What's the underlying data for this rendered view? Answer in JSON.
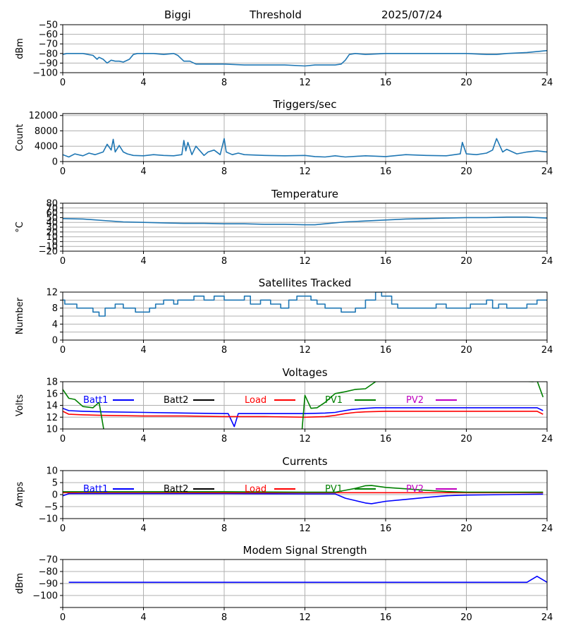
{
  "header": {
    "station": "Biggi",
    "mode": "Threshold",
    "date": "2025/07/24"
  },
  "chart_data": [
    {
      "type": "line",
      "title": "",
      "xlabel": "",
      "ylabel": "dBm",
      "xlim": [
        0,
        24
      ],
      "ylim": [
        -100,
        -50
      ],
      "xticks": [
        "0",
        "4",
        "8",
        "12",
        "16",
        "20",
        "24"
      ],
      "yticks": [
        "−50",
        "−60",
        "−70",
        "−80",
        "−90",
        "−100"
      ],
      "ytick_values": [
        -50,
        -60,
        -70,
        -80,
        -90,
        -100
      ],
      "grid": true,
      "series": [
        {
          "color": "#1f77b4",
          "x": [
            0,
            0.2,
            0.5,
            1,
            1.5,
            1.7,
            1.8,
            2,
            2.2,
            2.4,
            2.6,
            2.8,
            3,
            3.3,
            3.5,
            3.7,
            4,
            4.5,
            5,
            5.5,
            5.7,
            6,
            6.3,
            6.6,
            7,
            8,
            9,
            10,
            11,
            12,
            12.5,
            13,
            13.5,
            13.8,
            14,
            14.2,
            14.5,
            15,
            16,
            17,
            18,
            19,
            20,
            21,
            21.5,
            22,
            23,
            24
          ],
          "values": [
            -81,
            -80,
            -80,
            -80,
            -82,
            -86,
            -84,
            -86,
            -90,
            -87,
            -88,
            -88,
            -89,
            -86,
            -81,
            -80,
            -80,
            -80,
            -81,
            -80,
            -82,
            -88,
            -88,
            -91,
            -91,
            -91,
            -92,
            -92,
            -92,
            -93,
            -92,
            -92,
            -92,
            -91,
            -87,
            -81,
            -80,
            -81,
            -80,
            -80,
            -80,
            -80,
            -80,
            -81,
            -81,
            -80,
            -79,
            -77
          ]
        }
      ]
    },
    {
      "type": "line",
      "title": "Triggers/sec",
      "xlabel": "",
      "ylabel": "Count",
      "xlim": [
        0,
        24
      ],
      "ylim": [
        0,
        12500
      ],
      "xticks": [
        "0",
        "4",
        "8",
        "12",
        "16",
        "20",
        "24"
      ],
      "yticks": [
        "0",
        "4000",
        "8000",
        "12000"
      ],
      "ytick_values": [
        0,
        4000,
        8000,
        12000
      ],
      "grid": true,
      "series": [
        {
          "color": "#1f77b4",
          "x": [
            0,
            0.3,
            0.6,
            1,
            1.3,
            1.6,
            2,
            2.2,
            2.4,
            2.5,
            2.6,
            2.8,
            3,
            3.2,
            3.5,
            4,
            4.5,
            5,
            5.5,
            5.9,
            6,
            6.1,
            6.2,
            6.4,
            6.6,
            7,
            7.2,
            7.5,
            7.8,
            8,
            8.1,
            8.4,
            8.7,
            9,
            10,
            11,
            12,
            12.5,
            13,
            13.5,
            14,
            15,
            16,
            17,
            18,
            19,
            19.7,
            19.8,
            20,
            20.5,
            21,
            21.3,
            21.5,
            21.8,
            22,
            22.5,
            23,
            23.5,
            24
          ],
          "values": [
            1800,
            1200,
            2000,
            1500,
            2200,
            1800,
            2500,
            4500,
            3000,
            5800,
            2500,
            4200,
            2500,
            2000,
            1600,
            1500,
            1800,
            1600,
            1500,
            1800,
            5500,
            2800,
            5000,
            1800,
            4000,
            1600,
            2500,
            3000,
            1800,
            6000,
            2500,
            1800,
            2200,
            1800,
            1600,
            1500,
            1600,
            1300,
            1200,
            1500,
            1200,
            1500,
            1300,
            1800,
            1600,
            1500,
            2000,
            5000,
            2000,
            1800,
            2200,
            3000,
            6000,
            2500,
            3200,
            2000,
            2500,
            2800,
            2500
          ]
        }
      ]
    },
    {
      "type": "line",
      "title": "Temperature",
      "xlabel": "",
      "ylabel": "°C",
      "xlim": [
        0,
        24
      ],
      "ylim": [
        -20,
        80
      ],
      "xticks": [
        "0",
        "4",
        "8",
        "12",
        "16",
        "20",
        "24"
      ],
      "yticks": [
        "−20",
        "0",
        "20",
        "40",
        "60",
        "80"
      ],
      "ytick_values": [
        -20,
        -10,
        0,
        10,
        20,
        30,
        40,
        50,
        60,
        70,
        80
      ],
      "yticklabels_full": [
        "−20",
        "−10",
        "0",
        "10",
        "20",
        "30",
        "40",
        "50",
        "60",
        "70",
        "80"
      ],
      "grid": true,
      "series": [
        {
          "color": "#1f77b4",
          "x": [
            0,
            1,
            2,
            3,
            4,
            5,
            6,
            7,
            8,
            9,
            10,
            11,
            12,
            12.5,
            13,
            14,
            15,
            16,
            17,
            18,
            19,
            20,
            21,
            22,
            23,
            23.5,
            24
          ],
          "values": [
            48,
            47,
            44,
            41,
            40,
            39,
            38,
            38,
            37,
            37,
            36,
            36,
            35,
            35,
            37,
            41,
            43,
            45,
            47,
            48,
            49,
            50,
            50,
            51,
            51,
            50,
            49
          ]
        }
      ]
    },
    {
      "type": "line",
      "title": "Satellites Tracked",
      "xlabel": "",
      "ylabel": "Number",
      "xlim": [
        0,
        24
      ],
      "ylim": [
        0,
        12
      ],
      "xticks": [
        "0",
        "4",
        "8",
        "12",
        "16",
        "20",
        "24"
      ],
      "yticks": [
        "0",
        "4",
        "8",
        "12"
      ],
      "ytick_values": [
        0,
        2,
        4,
        6,
        8,
        10,
        12
      ],
      "yticklabels_full": [
        "0",
        "",
        "4",
        "",
        "8",
        "",
        "12"
      ],
      "grid": true,
      "step": true,
      "series": [
        {
          "color": "#1f77b4",
          "x": [
            0,
            0.1,
            0.3,
            0.7,
            1,
            1.5,
            1.8,
            2.1,
            2.3,
            2.6,
            3,
            3.5,
            3.6,
            4,
            4.3,
            4.6,
            5,
            5.5,
            5.7,
            6,
            6.5,
            7,
            7.5,
            8,
            8.5,
            9,
            9.3,
            9.8,
            10.3,
            10.8,
            11.2,
            11.6,
            11.9,
            12.3,
            12.6,
            13,
            13.8,
            14.5,
            15,
            15.5,
            15.8,
            16.3,
            16.6,
            17,
            17.5,
            18,
            18.5,
            19,
            19.5,
            20.2,
            20.5,
            21,
            21.3,
            21.6,
            22,
            22.5,
            23,
            23.5,
            24
          ],
          "values": [
            10,
            9,
            9,
            8,
            8,
            7,
            6,
            8,
            8,
            9,
            8,
            8,
            7,
            7,
            8,
            9,
            10,
            9,
            10,
            10,
            11,
            10,
            11,
            10,
            10,
            11,
            9,
            10,
            9,
            8,
            10,
            11,
            11,
            10,
            9,
            8,
            7,
            8,
            10,
            12,
            11,
            9,
            8,
            8,
            8,
            8,
            9,
            8,
            8,
            9,
            9,
            10,
            8,
            9,
            8,
            8,
            9,
            10,
            10
          ]
        }
      ]
    },
    {
      "type": "line",
      "title": "Voltages",
      "xlabel": "",
      "ylabel": "Volts",
      "xlim": [
        0,
        24
      ],
      "ylim": [
        10,
        18
      ],
      "xticks": [
        "0",
        "4",
        "8",
        "12",
        "16",
        "20",
        "24"
      ],
      "yticks": [
        "10",
        "12",
        "14",
        "16",
        "18"
      ],
      "ytick_values": [
        10,
        12,
        14,
        16,
        18
      ],
      "grid": true,
      "legend": "inside-top, horizontal",
      "series": [
        {
          "name": "Batt1",
          "color": "#0000ff",
          "x": [
            0,
            0.3,
            1,
            2,
            4,
            6,
            8,
            8.2,
            8.5,
            8.7,
            9,
            10,
            11,
            12,
            13,
            13.5,
            13.8,
            14.3,
            15,
            15.5,
            16,
            18,
            20,
            22,
            23.5,
            23.8
          ],
          "values": [
            13.5,
            13.1,
            13.0,
            12.9,
            12.8,
            12.7,
            12.6,
            12.6,
            10.4,
            12.6,
            12.6,
            12.6,
            12.6,
            12.6,
            12.7,
            12.8,
            13.0,
            13.3,
            13.5,
            13.6,
            13.6,
            13.6,
            13.6,
            13.6,
            13.6,
            13.1
          ]
        },
        {
          "name": "Batt2",
          "color": "#000000",
          "x": [],
          "values": []
        },
        {
          "name": "Load",
          "color": "#ff0000",
          "x": [
            0,
            0.3,
            1,
            2,
            4,
            6,
            8,
            10,
            12,
            13,
            13.5,
            14,
            14.5,
            15,
            16,
            18,
            20,
            22,
            23.5,
            23.8
          ],
          "values": [
            13.0,
            12.5,
            12.4,
            12.3,
            12.2,
            12.2,
            12.1,
            12.1,
            12.0,
            12.1,
            12.3,
            12.6,
            12.8,
            12.9,
            13.0,
            13.0,
            13.0,
            13.0,
            13.0,
            12.5
          ]
        },
        {
          "name": "PV1",
          "color": "#008000",
          "x": [
            0,
            0.3,
            0.6,
            1,
            1.5,
            1.8,
            2,
            2.05,
            11.85,
            12,
            12.3,
            12.6,
            13,
            13.5,
            14,
            14.5,
            15,
            15.5,
            15.7,
            23.3,
            23.5,
            23.8
          ],
          "values": [
            16.7,
            15.2,
            15.0,
            13.8,
            13.6,
            14.5,
            10.5,
            9.5,
            9.5,
            15.7,
            13.5,
            13.6,
            14.5,
            16.0,
            16.3,
            16.7,
            16.8,
            18.0,
            19.0,
            18.0,
            18.2,
            15.4
          ]
        },
        {
          "name": "PV2",
          "color": "#bf00bf",
          "x": [],
          "values": []
        }
      ]
    },
    {
      "type": "line",
      "title": "Currents",
      "xlabel": "",
      "ylabel": "Amps",
      "xlim": [
        0,
        24
      ],
      "ylim": [
        -10,
        10
      ],
      "xticks": [
        "0",
        "4",
        "8",
        "12",
        "16",
        "20",
        "24"
      ],
      "yticks": [
        "−10",
        "−5",
        "0",
        "5",
        "10"
      ],
      "ytick_values": [
        -10,
        -5,
        0,
        5,
        10
      ],
      "grid": true,
      "legend": "inside-top, horizontal",
      "series": [
        {
          "name": "Batt1",
          "color": "#0000ff",
          "x": [
            0,
            0.3,
            1,
            4,
            8,
            12,
            13.5,
            14,
            14.5,
            15,
            15.3,
            16,
            17,
            18,
            19,
            20,
            22,
            23.8
          ],
          "values": [
            -0.5,
            0.4,
            0.4,
            0.4,
            0.4,
            0.3,
            0.3,
            -1.5,
            -2.5,
            -3.5,
            -3.8,
            -2.8,
            -2.0,
            -1.2,
            -0.5,
            -0.2,
            0.0,
            0.2
          ]
        },
        {
          "name": "Batt2",
          "color": "#000000",
          "x": [],
          "values": []
        },
        {
          "name": "Load",
          "color": "#ff0000",
          "x": [
            0,
            1,
            4,
            8,
            12,
            16,
            20,
            23.8
          ],
          "values": [
            0.8,
            0.9,
            0.9,
            0.8,
            0.8,
            0.8,
            0.8,
            0.8
          ]
        },
        {
          "name": "PV1",
          "color": "#008000",
          "x": [
            0,
            1,
            4,
            8,
            12,
            13.5,
            14,
            14.5,
            15,
            15.3,
            16,
            17,
            18,
            19,
            20,
            22,
            23.8
          ],
          "values": [
            1.2,
            1.2,
            1.2,
            1.2,
            1.0,
            1.0,
            1.8,
            2.6,
            3.7,
            3.8,
            3.0,
            2.4,
            1.8,
            1.3,
            1.0,
            1.0,
            1.0
          ]
        },
        {
          "name": "PV2",
          "color": "#bf00bf",
          "x": [],
          "values": []
        }
      ]
    },
    {
      "type": "line",
      "title": "Modem Signal Strength",
      "xlabel": "",
      "ylabel": "dBm",
      "xlim": [
        0,
        24
      ],
      "ylim": [
        -110,
        -70
      ],
      "xticks": [
        "0",
        "4",
        "8",
        "12",
        "16",
        "20",
        "24"
      ],
      "yticks": [
        "−70",
        "−80",
        "−90",
        "−100"
      ],
      "ytick_values": [
        -70,
        -80,
        -90,
        -100,
        -110
      ],
      "yticklabels_full": [
        "−70",
        "−80",
        "−90",
        "−100",
        ""
      ],
      "grid": true,
      "series": [
        {
          "color": "#0000ff",
          "x": [
            0.3,
            23,
            23.5,
            24
          ],
          "values": [
            -89,
            -89,
            -84,
            -89
          ]
        }
      ]
    }
  ]
}
